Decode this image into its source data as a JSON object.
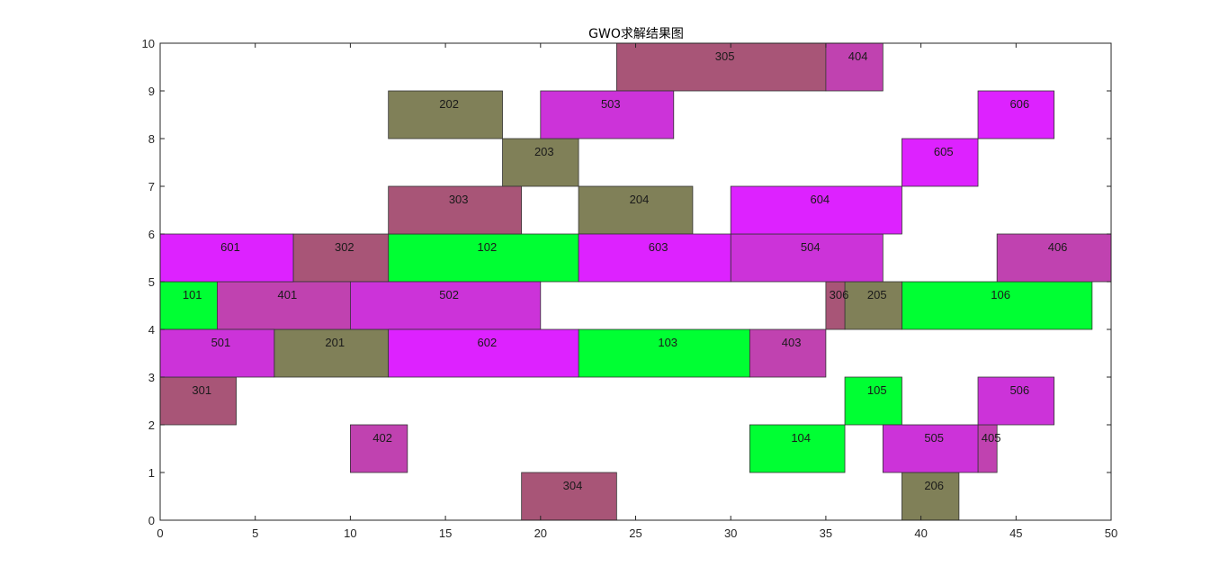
{
  "chart_data": {
    "type": "gantt",
    "title": "GWO求解结果图",
    "xlabel": "",
    "ylabel": "",
    "xlim": [
      0,
      50
    ],
    "ylim": [
      0,
      10
    ],
    "xticks": [
      0,
      5,
      10,
      15,
      20,
      25,
      30,
      35,
      40,
      45,
      50
    ],
    "yticks": [
      0,
      1,
      2,
      3,
      4,
      5,
      6,
      7,
      8,
      9,
      10
    ],
    "grid": false,
    "colors": {
      "job1": "#00ff33",
      "job2": "#808058",
      "job3": "#a85577",
      "job4": "#c042b0",
      "job5": "#cc33d9",
      "job6": "#dd22ff"
    },
    "tasks": [
      {
        "label": "101",
        "row": 4,
        "start": 0,
        "end": 3,
        "job": "job1"
      },
      {
        "label": "102",
        "row": 5,
        "start": 12,
        "end": 22,
        "job": "job1"
      },
      {
        "label": "103",
        "row": 3,
        "start": 22,
        "end": 31,
        "job": "job1"
      },
      {
        "label": "104",
        "row": 1,
        "start": 31,
        "end": 36,
        "job": "job1"
      },
      {
        "label": "105",
        "row": 2,
        "start": 36,
        "end": 39,
        "job": "job1"
      },
      {
        "label": "106",
        "row": 4,
        "start": 39,
        "end": 49,
        "job": "job1"
      },
      {
        "label": "201",
        "row": 3,
        "start": 6,
        "end": 12,
        "job": "job2"
      },
      {
        "label": "202",
        "row": 8,
        "start": 12,
        "end": 18,
        "job": "job2"
      },
      {
        "label": "203",
        "row": 7,
        "start": 18,
        "end": 22,
        "job": "job2"
      },
      {
        "label": "204",
        "row": 6,
        "start": 22,
        "end": 28,
        "job": "job2"
      },
      {
        "label": "205",
        "row": 4,
        "start": 36,
        "end": 39,
        "job": "job2"
      },
      {
        "label": "206",
        "row": 0,
        "start": 39,
        "end": 42,
        "job": "job2"
      },
      {
        "label": "301",
        "row": 2,
        "start": 0,
        "end": 4,
        "job": "job3"
      },
      {
        "label": "302",
        "row": 5,
        "start": 7,
        "end": 12,
        "job": "job3"
      },
      {
        "label": "303",
        "row": 6,
        "start": 12,
        "end": 19,
        "job": "job3"
      },
      {
        "label": "304",
        "row": 0,
        "start": 19,
        "end": 24,
        "job": "job3"
      },
      {
        "label": "305",
        "row": 9,
        "start": 24,
        "end": 35,
        "job": "job3"
      },
      {
        "label": "306",
        "row": 4,
        "start": 35,
        "end": 36,
        "job": "job3"
      },
      {
        "label": "401",
        "row": 4,
        "start": 3,
        "end": 10,
        "job": "job4"
      },
      {
        "label": "402",
        "row": 1,
        "start": 10,
        "end": 13,
        "job": "job4"
      },
      {
        "label": "403",
        "row": 3,
        "start": 31,
        "end": 35,
        "job": "job4"
      },
      {
        "label": "404",
        "row": 9,
        "start": 35,
        "end": 38,
        "job": "job4"
      },
      {
        "label": "405",
        "row": 1,
        "start": 43,
        "end": 44,
        "job": "job4"
      },
      {
        "label": "406",
        "row": 5,
        "start": 44,
        "end": 50,
        "job": "job4"
      },
      {
        "label": "501",
        "row": 3,
        "start": 0,
        "end": 6,
        "job": "job5"
      },
      {
        "label": "502",
        "row": 4,
        "start": 10,
        "end": 20,
        "job": "job5"
      },
      {
        "label": "503",
        "row": 8,
        "start": 20,
        "end": 27,
        "job": "job5"
      },
      {
        "label": "504",
        "row": 5,
        "start": 30,
        "end": 38,
        "job": "job5"
      },
      {
        "label": "505",
        "row": 1,
        "start": 38,
        "end": 43,
        "job": "job5"
      },
      {
        "label": "506",
        "row": 2,
        "start": 43,
        "end": 47,
        "job": "job5"
      },
      {
        "label": "601",
        "row": 5,
        "start": 0,
        "end": 7,
        "job": "job6"
      },
      {
        "label": "602",
        "row": 3,
        "start": 12,
        "end": 22,
        "job": "job6"
      },
      {
        "label": "603",
        "row": 5,
        "start": 22,
        "end": 30,
        "job": "job6"
      },
      {
        "label": "604",
        "row": 6,
        "start": 30,
        "end": 39,
        "job": "job6"
      },
      {
        "label": "605",
        "row": 7,
        "start": 39,
        "end": 43,
        "job": "job6"
      },
      {
        "label": "606",
        "row": 8,
        "start": 43,
        "end": 47,
        "job": "job6"
      }
    ]
  }
}
